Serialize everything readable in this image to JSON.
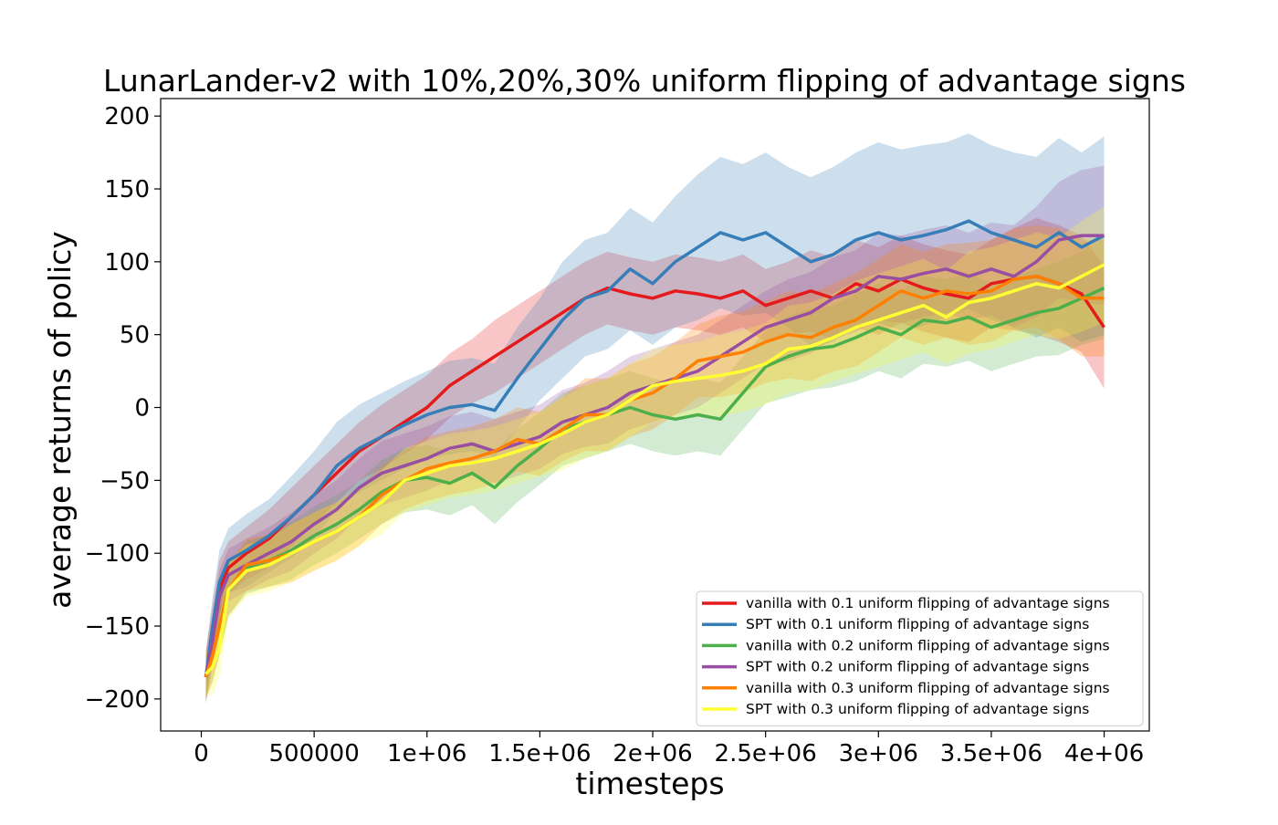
{
  "chart_data": {
    "type": "line",
    "title": "LunarLander-v2 with 10%,20%,30% uniform flipping of advantage signs",
    "xlabel": "timesteps",
    "ylabel": "average returns of policy",
    "xlim": [
      -180000,
      4200000
    ],
    "ylim": [
      -222,
      212
    ],
    "xticks": [
      0,
      500000,
      1000000,
      1500000,
      2000000,
      2500000,
      3000000,
      3500000,
      4000000
    ],
    "xtick_labels": [
      "0",
      "500000",
      "1e+06",
      "1.5e+06",
      "2e+06",
      "2.5e+06",
      "3e+06",
      "3.5e+06",
      "4e+06"
    ],
    "yticks": [
      -200,
      -150,
      -100,
      -50,
      0,
      50,
      100,
      150,
      200
    ],
    "ytick_labels": [
      "−200",
      "−150",
      "−100",
      "−50",
      "0",
      "50",
      "100",
      "150",
      "200"
    ],
    "grid": false,
    "legend_position": "lower-right",
    "series": [
      {
        "name": "vanilla with 0.1 uniform flipping of advantage signs",
        "color": "#e41a1c",
        "x": [
          20000,
          50000,
          80000,
          120000,
          200000,
          300000,
          400000,
          500000,
          600000,
          700000,
          800000,
          900000,
          1000000,
          1100000,
          1200000,
          1300000,
          1400000,
          1500000,
          1600000,
          1700000,
          1800000,
          1900000,
          2000000,
          2100000,
          2200000,
          2300000,
          2400000,
          2500000,
          2600000,
          2700000,
          2800000,
          2900000,
          3000000,
          3100000,
          3200000,
          3300000,
          3400000,
          3500000,
          3600000,
          3700000,
          3800000,
          3900000,
          4000000
        ],
        "values": [
          -185,
          -155,
          -125,
          -110,
          -100,
          -90,
          -75,
          -60,
          -45,
          -30,
          -20,
          -10,
          0,
          15,
          25,
          35,
          45,
          55,
          65,
          75,
          82,
          78,
          75,
          80,
          78,
          75,
          80,
          70,
          75,
          80,
          75,
          85,
          80,
          88,
          82,
          78,
          75,
          85,
          88,
          90,
          85,
          78,
          55
        ],
        "band": [
          18,
          20,
          20,
          18,
          18,
          20,
          20,
          20,
          20,
          20,
          22,
          22,
          22,
          22,
          22,
          25,
          25,
          25,
          25,
          25,
          25,
          25,
          25,
          25,
          25,
          25,
          25,
          25,
          25,
          28,
          28,
          30,
          30,
          30,
          30,
          30,
          30,
          30,
          35,
          40,
          40,
          40,
          42
        ]
      },
      {
        "name": "SPT with 0.1 uniform flipping of advantage signs",
        "color": "#377eb8",
        "x": [
          20000,
          50000,
          80000,
          120000,
          200000,
          300000,
          400000,
          500000,
          600000,
          700000,
          800000,
          900000,
          1000000,
          1100000,
          1200000,
          1300000,
          1400000,
          1500000,
          1600000,
          1700000,
          1800000,
          1900000,
          2000000,
          2100000,
          2200000,
          2300000,
          2400000,
          2500000,
          2600000,
          2700000,
          2800000,
          2900000,
          3000000,
          3100000,
          3200000,
          3300000,
          3400000,
          3500000,
          3600000,
          3700000,
          3800000,
          3900000,
          4000000
        ],
        "values": [
          -185,
          -150,
          -120,
          -105,
          -98,
          -88,
          -75,
          -60,
          -40,
          -28,
          -20,
          -12,
          -5,
          0,
          2,
          -2,
          20,
          40,
          60,
          75,
          80,
          95,
          85,
          100,
          110,
          120,
          115,
          120,
          110,
          100,
          105,
          115,
          120,
          115,
          118,
          122,
          128,
          120,
          115,
          110,
          120,
          110,
          118
        ],
        "band": [
          18,
          20,
          22,
          22,
          25,
          25,
          28,
          30,
          30,
          30,
          30,
          30,
          30,
          32,
          32,
          32,
          35,
          35,
          40,
          40,
          40,
          42,
          42,
          45,
          50,
          52,
          52,
          55,
          55,
          58,
          60,
          60,
          62,
          62,
          62,
          60,
          60,
          60,
          60,
          62,
          65,
          65,
          68
        ]
      },
      {
        "name": "vanilla with 0.2 uniform flipping of advantage signs",
        "color": "#4daf4a",
        "x": [
          20000,
          50000,
          80000,
          120000,
          200000,
          300000,
          400000,
          500000,
          600000,
          700000,
          800000,
          900000,
          1000000,
          1100000,
          1200000,
          1300000,
          1400000,
          1500000,
          1600000,
          1700000,
          1800000,
          1900000,
          2000000,
          2100000,
          2200000,
          2300000,
          2400000,
          2500000,
          2600000,
          2700000,
          2800000,
          2900000,
          3000000,
          3100000,
          3200000,
          3300000,
          3400000,
          3500000,
          3600000,
          3700000,
          3800000,
          3900000,
          4000000
        ],
        "values": [
          -185,
          -170,
          -150,
          -125,
          -110,
          -105,
          -98,
          -88,
          -80,
          -70,
          -58,
          -50,
          -48,
          -52,
          -45,
          -55,
          -40,
          -28,
          -15,
          -10,
          -5,
          0,
          -5,
          -8,
          -5,
          -8,
          10,
          28,
          35,
          40,
          42,
          48,
          55,
          50,
          60,
          58,
          62,
          55,
          60,
          65,
          68,
          75,
          82
        ],
        "band": [
          15,
          18,
          20,
          18,
          18,
          18,
          20,
          20,
          20,
          20,
          22,
          22,
          22,
          22,
          22,
          25,
          25,
          25,
          25,
          25,
          25,
          25,
          25,
          25,
          25,
          25,
          25,
          25,
          28,
          28,
          28,
          30,
          30,
          30,
          30,
          30,
          30,
          30,
          30,
          30,
          32,
          32,
          35
        ]
      },
      {
        "name": "SPT with 0.2 uniform flipping of advantage signs",
        "color": "#984ea3",
        "x": [
          20000,
          50000,
          80000,
          120000,
          200000,
          300000,
          400000,
          500000,
          600000,
          700000,
          800000,
          900000,
          1000000,
          1100000,
          1200000,
          1300000,
          1400000,
          1500000,
          1600000,
          1700000,
          1800000,
          1900000,
          2000000,
          2100000,
          2200000,
          2300000,
          2400000,
          2500000,
          2600000,
          2700000,
          2800000,
          2900000,
          3000000,
          3100000,
          3200000,
          3300000,
          3400000,
          3500000,
          3600000,
          3700000,
          3800000,
          3900000,
          4000000
        ],
        "values": [
          -185,
          -160,
          -130,
          -115,
          -108,
          -100,
          -92,
          -80,
          -70,
          -55,
          -45,
          -40,
          -35,
          -28,
          -25,
          -30,
          -25,
          -20,
          -10,
          -5,
          0,
          10,
          15,
          20,
          25,
          35,
          45,
          55,
          60,
          65,
          75,
          80,
          90,
          88,
          92,
          95,
          90,
          95,
          90,
          100,
          115,
          118,
          118
        ],
        "band": [
          15,
          18,
          18,
          18,
          18,
          18,
          20,
          20,
          20,
          20,
          22,
          22,
          22,
          22,
          22,
          22,
          22,
          22,
          22,
          22,
          25,
          25,
          25,
          25,
          25,
          25,
          25,
          25,
          28,
          28,
          28,
          28,
          30,
          30,
          30,
          30,
          30,
          32,
          35,
          38,
          40,
          45,
          48
        ]
      },
      {
        "name": "vanilla with 0.3 uniform flipping of advantage signs",
        "color": "#ff7f00",
        "x": [
          20000,
          50000,
          80000,
          120000,
          200000,
          300000,
          400000,
          500000,
          600000,
          700000,
          800000,
          900000,
          1000000,
          1100000,
          1200000,
          1300000,
          1400000,
          1500000,
          1600000,
          1700000,
          1800000,
          1900000,
          2000000,
          2100000,
          2200000,
          2300000,
          2400000,
          2500000,
          2600000,
          2700000,
          2800000,
          2900000,
          3000000,
          3100000,
          3200000,
          3300000,
          3400000,
          3500000,
          3600000,
          3700000,
          3800000,
          3900000,
          4000000
        ],
        "values": [
          -185,
          -170,
          -150,
          -125,
          -108,
          -105,
          -100,
          -92,
          -85,
          -75,
          -60,
          -50,
          -42,
          -38,
          -35,
          -30,
          -22,
          -25,
          -15,
          -5,
          -5,
          5,
          10,
          20,
          32,
          35,
          38,
          45,
          50,
          48,
          55,
          60,
          70,
          80,
          75,
          80,
          78,
          80,
          88,
          90,
          85,
          75,
          75
        ],
        "band": [
          15,
          18,
          20,
          18,
          18,
          18,
          20,
          20,
          20,
          20,
          20,
          20,
          22,
          22,
          22,
          22,
          22,
          22,
          22,
          25,
          25,
          25,
          25,
          25,
          25,
          28,
          28,
          28,
          30,
          30,
          30,
          32,
          32,
          32,
          32,
          32,
          35,
          35,
          35,
          35,
          38,
          40,
          40
        ]
      },
      {
        "name": "SPT with 0.3 uniform flipping of advantage signs",
        "color": "#ffff33",
        "x": [
          20000,
          50000,
          80000,
          120000,
          200000,
          300000,
          400000,
          500000,
          600000,
          700000,
          800000,
          900000,
          1000000,
          1100000,
          1200000,
          1300000,
          1400000,
          1500000,
          1600000,
          1700000,
          1800000,
          1900000,
          2000000,
          2100000,
          2200000,
          2300000,
          2400000,
          2500000,
          2600000,
          2700000,
          2800000,
          2900000,
          3000000,
          3100000,
          3200000,
          3300000,
          3400000,
          3500000,
          3600000,
          3700000,
          3800000,
          3900000,
          4000000
        ],
        "values": [
          -183,
          -178,
          -165,
          -125,
          -112,
          -108,
          -100,
          -92,
          -85,
          -75,
          -65,
          -50,
          -45,
          -40,
          -38,
          -35,
          -30,
          -25,
          -18,
          -10,
          -5,
          5,
          15,
          18,
          20,
          22,
          25,
          30,
          40,
          42,
          48,
          55,
          60,
          65,
          70,
          62,
          72,
          75,
          80,
          85,
          82,
          90,
          98
        ],
        "band": [
          15,
          18,
          20,
          20,
          18,
          18,
          20,
          20,
          20,
          20,
          22,
          22,
          22,
          22,
          22,
          22,
          22,
          22,
          25,
          25,
          25,
          25,
          25,
          25,
          25,
          28,
          28,
          28,
          30,
          30,
          30,
          32,
          32,
          32,
          32,
          32,
          35,
          35,
          35,
          35,
          35,
          38,
          40
        ]
      }
    ]
  }
}
